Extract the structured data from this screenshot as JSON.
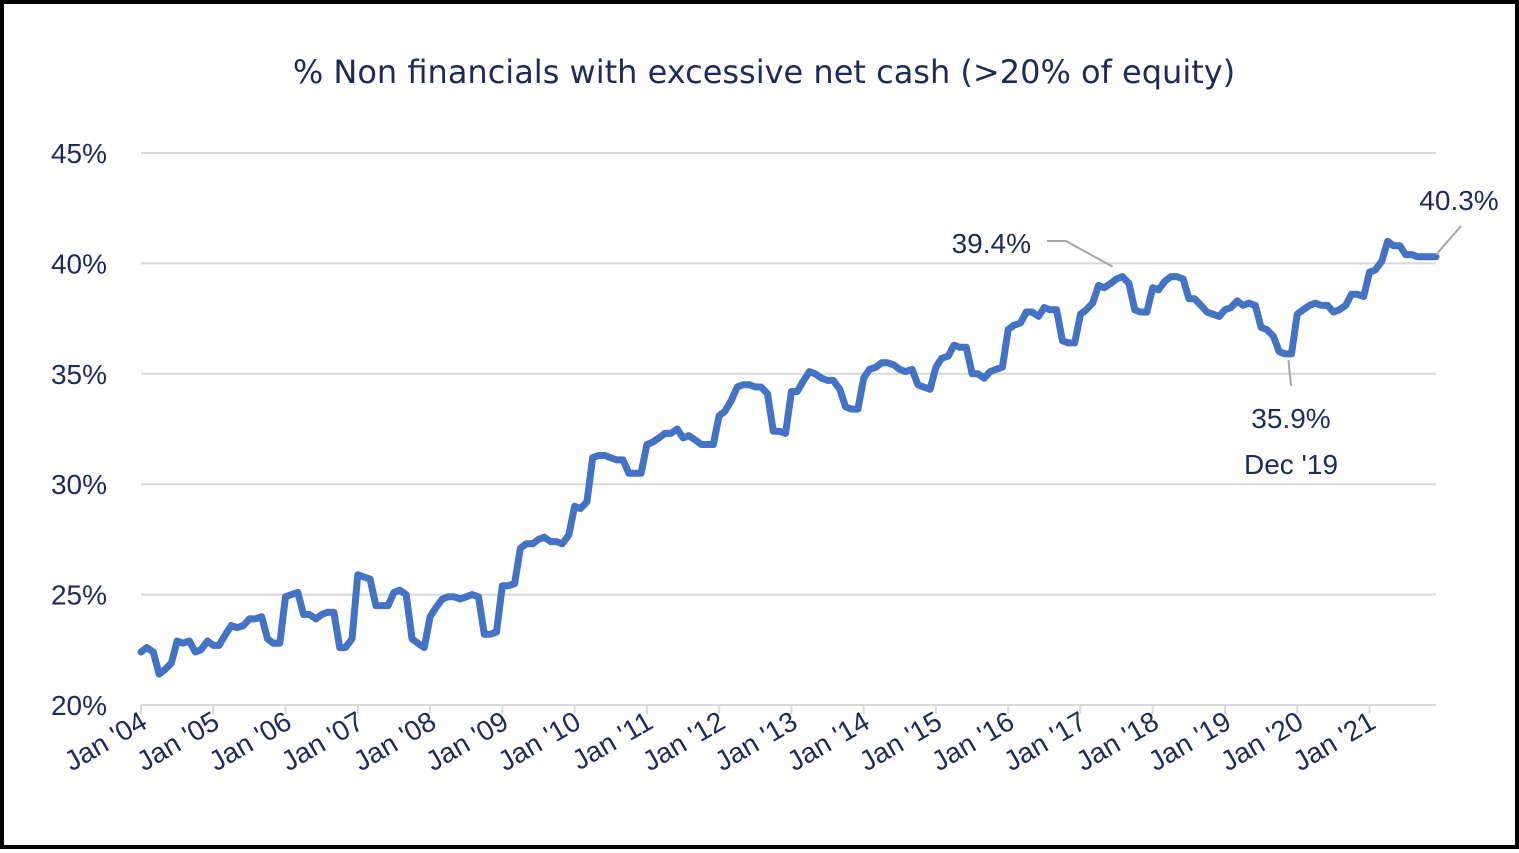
{
  "chart_data": {
    "type": "line",
    "title": "% Non financials with excessive net cash (>20% of equity)",
    "xlabel": "",
    "ylabel": "",
    "ylim": [
      20,
      45
    ],
    "yticks": [
      "20%",
      "25%",
      "30%",
      "35%",
      "40%",
      "45%"
    ],
    "ytick_values": [
      20,
      25,
      30,
      35,
      40,
      45
    ],
    "xticks": [
      "Jan '04",
      "Jan '05",
      "Jan '06",
      "Jan '07",
      "Jan '08",
      "Jan '09",
      "Jan '10",
      "Jan '11",
      "Jan '12",
      "Jan '13",
      "Jan '14",
      "Jan '15",
      "Jan '16",
      "Jan '17",
      "Jan '18",
      "Jan '19",
      "Jan '20",
      "Jan '21"
    ],
    "xtick_years": [
      2004,
      2005,
      2006,
      2007,
      2008,
      2009,
      2010,
      2011,
      2012,
      2013,
      2014,
      2015,
      2016,
      2017,
      2018,
      2019,
      2020,
      2021
    ],
    "grid": "horizontal",
    "legend": "none",
    "colors": {
      "line": "#4472C4",
      "text": "#1F2A5C",
      "grid": "#D9D9D9",
      "leader": "#A6A6A6"
    },
    "series": [
      {
        "x": [
          2004.0,
          2004.08,
          2004.17,
          2004.25,
          2004.33,
          2004.42,
          2004.5,
          2004.58,
          2004.67,
          2004.75,
          2004.83,
          2004.92,
          2005.0,
          2005.08,
          2005.17,
          2005.25,
          2005.33,
          2005.42,
          2005.5,
          2005.58,
          2005.67,
          2005.75,
          2005.83,
          2005.92,
          2006.0,
          2006.08,
          2006.17,
          2006.25,
          2006.33,
          2006.42,
          2006.5,
          2006.58,
          2006.67,
          2006.75,
          2006.83,
          2006.92,
          2007.0,
          2007.08,
          2007.17,
          2007.25,
          2007.33,
          2007.42,
          2007.5,
          2007.58,
          2007.67,
          2007.75,
          2007.83,
          2007.92,
          2008.0,
          2008.08,
          2008.17,
          2008.25,
          2008.33,
          2008.42,
          2008.5,
          2008.58,
          2008.67,
          2008.75,
          2008.83,
          2008.92,
          2009.0,
          2009.08,
          2009.17,
          2009.25,
          2009.33,
          2009.42,
          2009.5,
          2009.58,
          2009.67,
          2009.75,
          2009.83,
          2009.92,
          2010.0,
          2010.08,
          2010.17,
          2010.25,
          2010.33,
          2010.42,
          2010.5,
          2010.58,
          2010.67,
          2010.75,
          2010.83,
          2010.92,
          2011.0,
          2011.08,
          2011.17,
          2011.25,
          2011.33,
          2011.42,
          2011.5,
          2011.58,
          2011.67,
          2011.75,
          2011.83,
          2011.92,
          2012.0,
          2012.08,
          2012.17,
          2012.25,
          2012.33,
          2012.42,
          2012.5,
          2012.58,
          2012.67,
          2012.75,
          2012.83,
          2012.92,
          2013.0,
          2013.08,
          2013.17,
          2013.25,
          2013.33,
          2013.42,
          2013.5,
          2013.58,
          2013.67,
          2013.75,
          2013.83,
          2013.92,
          2014.0,
          2014.08,
          2014.17,
          2014.25,
          2014.33,
          2014.42,
          2014.5,
          2014.58,
          2014.67,
          2014.75,
          2014.83,
          2014.92,
          2015.0,
          2015.08,
          2015.17,
          2015.25,
          2015.33,
          2015.42,
          2015.5,
          2015.58,
          2015.67,
          2015.75,
          2015.83,
          2015.92,
          2016.0,
          2016.08,
          2016.17,
          2016.25,
          2016.33,
          2016.42,
          2016.5,
          2016.58,
          2016.67,
          2016.75,
          2016.83,
          2016.92,
          2017.0,
          2017.08,
          2017.17,
          2017.25,
          2017.33,
          2017.42,
          2017.5,
          2017.58,
          2017.67,
          2017.75,
          2017.83,
          2017.92,
          2018.0,
          2018.08,
          2018.17,
          2018.25,
          2018.33,
          2018.42,
          2018.5,
          2018.58,
          2018.67,
          2018.75,
          2018.83,
          2018.92,
          2019.0,
          2019.08,
          2019.17,
          2019.25,
          2019.33,
          2019.42,
          2019.5,
          2019.58,
          2019.67,
          2019.75,
          2019.83,
          2019.92,
          2020.0,
          2020.08,
          2020.17,
          2020.25,
          2020.33,
          2020.42,
          2020.5,
          2020.58,
          2020.67,
          2020.75,
          2020.83,
          2020.92,
          2021.0,
          2021.08,
          2021.17,
          2021.25,
          2021.33,
          2021.42,
          2021.5,
          2021.58,
          2021.67,
          2021.75,
          2021.83,
          2021.92
        ],
        "y": [
          22.4,
          22.6,
          22.4,
          21.4,
          21.6,
          21.9,
          22.9,
          22.8,
          22.9,
          22.4,
          22.5,
          22.9,
          22.7,
          22.7,
          23.2,
          23.6,
          23.5,
          23.6,
          23.9,
          23.9,
          24.0,
          23.0,
          22.8,
          22.8,
          24.9,
          25.0,
          25.1,
          24.1,
          24.1,
          23.9,
          24.1,
          24.2,
          24.2,
          22.6,
          22.6,
          23.0,
          25.9,
          25.8,
          25.7,
          24.5,
          24.5,
          24.5,
          25.1,
          25.2,
          25.0,
          23.0,
          22.8,
          22.6,
          24.0,
          24.4,
          24.8,
          24.9,
          24.9,
          24.8,
          24.9,
          25.0,
          24.9,
          23.2,
          23.2,
          23.3,
          25.4,
          25.4,
          25.5,
          27.1,
          27.3,
          27.3,
          27.5,
          27.6,
          27.4,
          27.4,
          27.3,
          27.7,
          29.0,
          28.9,
          29.2,
          31.2,
          31.3,
          31.3,
          31.2,
          31.1,
          31.1,
          30.5,
          30.5,
          30.5,
          31.8,
          31.9,
          32.1,
          32.3,
          32.3,
          32.5,
          32.1,
          32.2,
          32.0,
          31.8,
          31.8,
          31.8,
          33.1,
          33.3,
          33.8,
          34.4,
          34.5,
          34.5,
          34.4,
          34.4,
          34.1,
          32.4,
          32.4,
          32.3,
          34.2,
          34.2,
          34.7,
          35.1,
          35.0,
          34.8,
          34.7,
          34.7,
          34.3,
          33.5,
          33.4,
          33.4,
          34.8,
          35.2,
          35.3,
          35.5,
          35.5,
          35.4,
          35.2,
          35.1,
          35.2,
          34.5,
          34.4,
          34.3,
          35.3,
          35.7,
          35.8,
          36.3,
          36.2,
          36.2,
          35.0,
          35.0,
          34.8,
          35.1,
          35.2,
          35.3,
          37.0,
          37.2,
          37.3,
          37.8,
          37.8,
          37.6,
          38.0,
          37.9,
          37.9,
          36.5,
          36.4,
          36.4,
          37.7,
          37.9,
          38.2,
          39.0,
          38.9,
          39.1,
          39.3,
          39.4,
          39.1,
          37.9,
          37.8,
          37.8,
          38.9,
          38.8,
          39.2,
          39.4,
          39.4,
          39.3,
          38.4,
          38.4,
          38.1,
          37.8,
          37.7,
          37.6,
          37.9,
          38.0,
          38.3,
          38.1,
          38.2,
          38.1,
          37.1,
          37.0,
          36.7,
          36.0,
          35.9,
          35.9,
          37.7,
          37.9,
          38.1,
          38.2,
          38.1,
          38.1,
          37.8,
          37.9,
          38.1,
          38.6,
          38.6,
          38.5,
          39.6,
          39.7,
          40.1,
          41.0,
          40.8,
          40.8,
          40.4,
          40.4,
          40.3,
          40.3,
          40.3,
          40.3
        ]
      }
    ],
    "annotations": [
      {
        "label": "39.4%",
        "x": 2017.5,
        "y": 39.4
      },
      {
        "label": "35.9%",
        "label2": "Dec '19",
        "x": 2019.92,
        "y": 35.9
      },
      {
        "label": "40.3%",
        "x": 2021.92,
        "y": 40.3
      }
    ]
  }
}
